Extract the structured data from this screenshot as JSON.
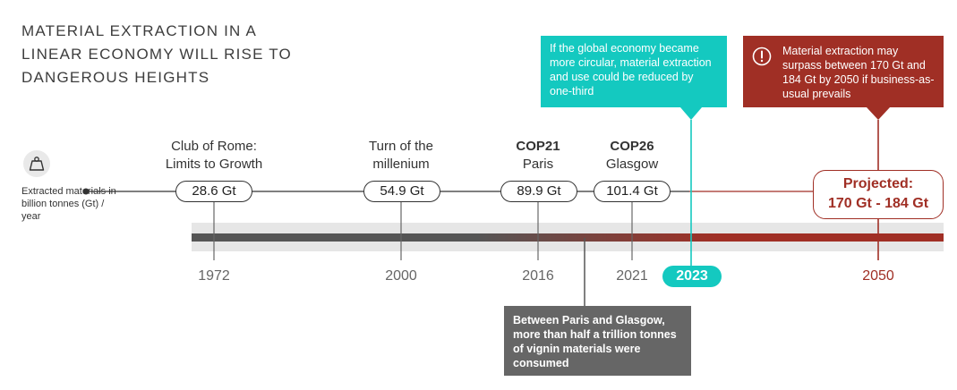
{
  "title": {
    "line1": "MATERIAL EXTRACTION IN A",
    "line2": "LINEAR ECONOMY WILL RISE TO",
    "line3": "DANGEROUS HEIGHTS"
  },
  "legend": {
    "icon": "weight-icon",
    "label": "Extracted materials in billion tonnes (Gt) / year"
  },
  "milestones": [
    {
      "line1": "Club of Rome:",
      "line2": "Limits to Growth",
      "value": "28.6 Gt",
      "year": "1972"
    },
    {
      "line1": "Turn of the",
      "line2": "millenium",
      "value": "54.9 Gt",
      "year": "2000"
    },
    {
      "line1": "COP21",
      "line2": "Paris",
      "value": "89.9 Gt",
      "year": "2016"
    },
    {
      "line1": "COP26",
      "line2": "Glasgow",
      "value": "101.4 Gt",
      "year": "2021"
    }
  ],
  "callouts": {
    "circular": "If the global economy became more circular, material extraction and use could be reduced by one-third",
    "year_2023": "2023",
    "warning": "Material extraction may surpass between 170 Gt and 184 Gt by 2050 if business-as-usual prevails",
    "warning_icon": "exclamation-circle-icon",
    "consumed": "Between Paris and Glasgow, more than half a trillion tonnes of vignin materials were consumed"
  },
  "projection": {
    "line1": "Projected:",
    "line2": "170 Gt - 184 Gt",
    "year": "2050"
  },
  "colors": {
    "accent_cyan": "#14c9c0",
    "accent_red": "#a02f25",
    "dark_grey": "#555555",
    "band_grey": "#e6e6e6"
  }
}
